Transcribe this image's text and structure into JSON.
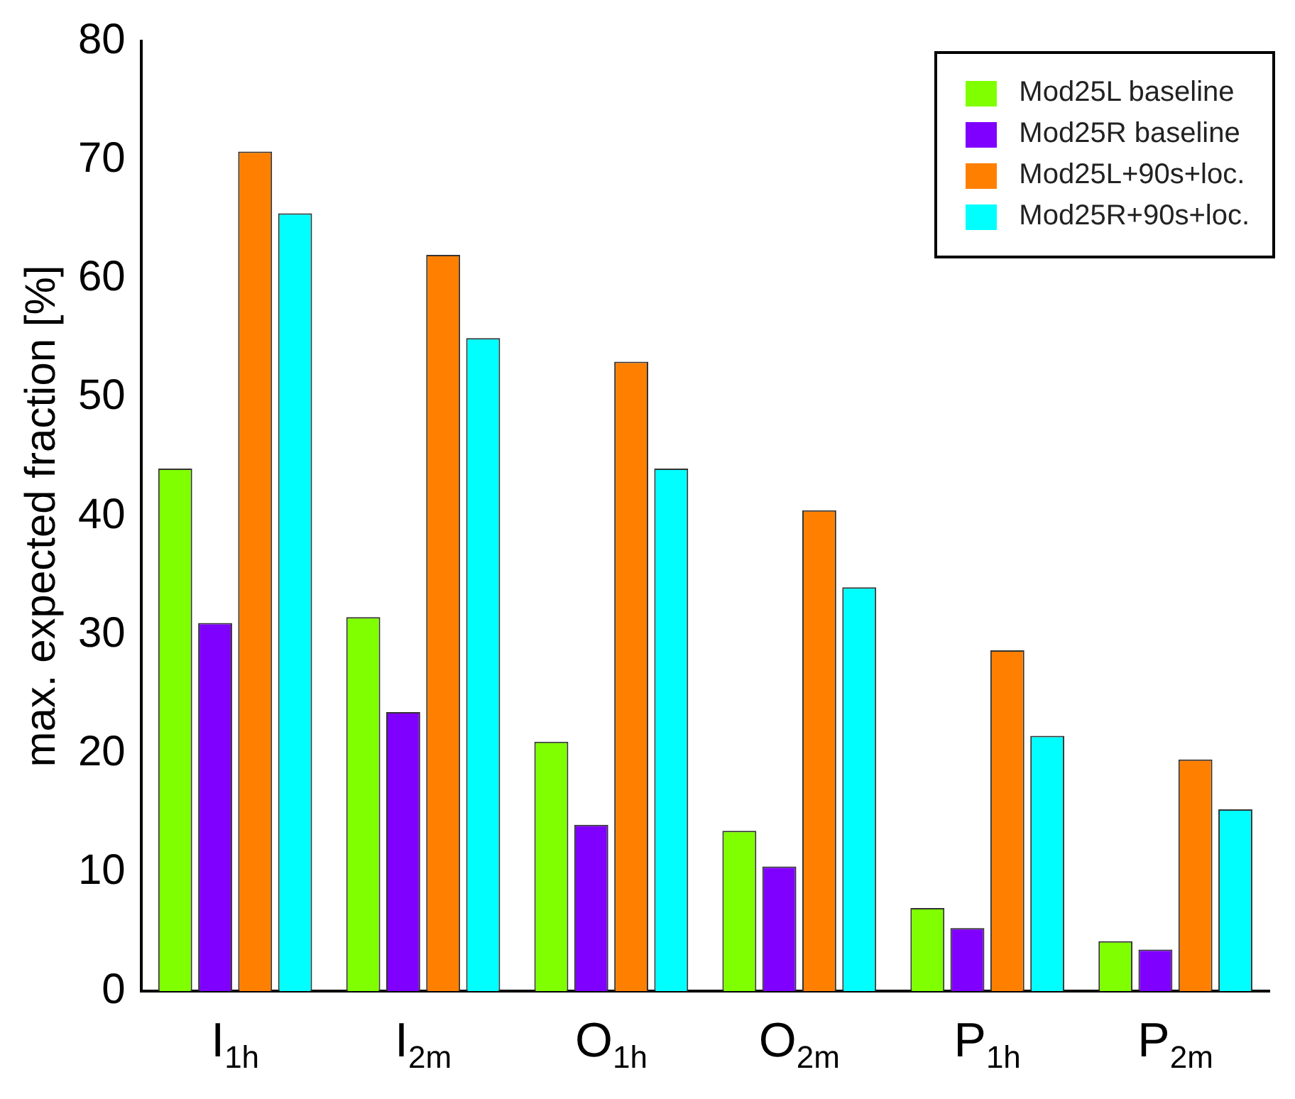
{
  "chart_data": {
    "type": "bar",
    "ylabel": "max. expected fraction [%]",
    "categories": [
      "I$_{1h}$",
      "I$_{2m}$",
      "O$_{1h}$",
      "O$_{2m}$",
      "P$_{1h}$",
      "P$_{2m}$"
    ],
    "series": [
      {
        "name": "Mod25L baseline",
        "color": "#80ff00",
        "values": [
          44,
          31.5,
          21,
          13.5,
          7,
          4.2
        ]
      },
      {
        "name": "Mod25R baseline",
        "color": "#8000ff",
        "values": [
          31,
          23.5,
          14,
          10.5,
          5.3,
          3.5
        ]
      },
      {
        "name": "Mod25L+90s+loc.",
        "color": "#ff8000",
        "values": [
          70.7,
          62,
          53,
          40.5,
          28.7,
          19.5
        ]
      },
      {
        "name": "Mod25R+90s+loc.",
        "color": "#00ffff",
        "values": [
          65.5,
          55,
          44,
          34,
          21.5,
          15.3
        ]
      }
    ],
    "ylim": [
      0,
      80
    ],
    "yticks": [
      0,
      10,
      20,
      30,
      40,
      50,
      60,
      70,
      80
    ],
    "grid": false,
    "legend": "top right"
  }
}
